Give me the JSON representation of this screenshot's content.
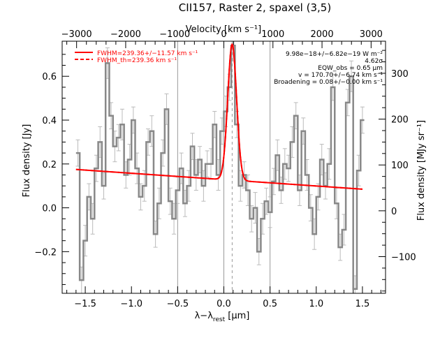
{
  "chart_data": {
    "type": "line",
    "title": "CII157, Raster 2, spaxel (3,5)",
    "xlabel": "λ−λ_rest [μm]",
    "xlabel_main": "λ−λ",
    "xlabel_sub": "rest",
    "xlabel_units": " [μm]",
    "ylabel": "Flux density [Jy]",
    "top_axis_label": "Velocity [km s⁻¹]",
    "right_axis_label": "Flux density [MJy sr⁻¹]",
    "xlim": [
      -1.75,
      1.75
    ],
    "ylim": [
      -0.39,
      0.76
    ],
    "x_ticks": [
      -1.5,
      -1.0,
      -0.5,
      0.0,
      0.5,
      1.0,
      1.5
    ],
    "x_tick_labels": [
      "−1.5",
      "−1.0",
      "−0.5",
      "0.0",
      "0.5",
      "1.0",
      "1.5"
    ],
    "y_ticks": [
      -0.2,
      0.0,
      0.2,
      0.4,
      0.6
    ],
    "y_tick_labels": [
      "−0.2",
      "0.0",
      "0.2",
      "0.4",
      "0.6"
    ],
    "top_ticks_kms": [
      -3000,
      -2000,
      -1000,
      0,
      1000,
      2000,
      3000
    ],
    "top_tick_labels": [
      "−3000",
      "−2000",
      "−1000",
      "0",
      "1000",
      "2000",
      "3000"
    ],
    "right_ticks_mjysr": [
      -100,
      0,
      100,
      200,
      300
    ],
    "right_tick_labels": [
      "−100",
      "0",
      "100",
      "200",
      "300"
    ],
    "grid": false,
    "vertical_lines_um": [
      -0.5,
      0.0,
      0.5
    ],
    "rest_line_um": 0.09,
    "legend": {
      "placement": "top-left",
      "entries": [
        {
          "label": "FWHM=239.36+/−11.57 km s⁻¹",
          "style": "solid",
          "color": "#ff0000"
        },
        {
          "label": "FWHM_th=239.36 km s⁻¹",
          "style": "dashed",
          "color": "#ff0000"
        }
      ]
    },
    "annotations": [
      "9.98e−18+/−6.82e−19 W m⁻²",
      "4.62σ",
      "EQW_obs = 0.65 μm",
      "v = 170.70+/−6.74 km s⁻¹",
      "Broadening = 0.08+/−0.00 km s⁻¹"
    ],
    "series": [
      {
        "name": "spectrum",
        "color": "#888888",
        "style": "step",
        "x": [
          -1.6,
          -1.56,
          -1.52,
          -1.48,
          -1.44,
          -1.4,
          -1.36,
          -1.32,
          -1.28,
          -1.24,
          -1.2,
          -1.16,
          -1.12,
          -1.08,
          -1.04,
          -1.0,
          -0.96,
          -0.92,
          -0.88,
          -0.84,
          -0.8,
          -0.76,
          -0.72,
          -0.68,
          -0.64,
          -0.6,
          -0.56,
          -0.52,
          -0.48,
          -0.44,
          -0.4,
          -0.36,
          -0.32,
          -0.28,
          -0.24,
          -0.2,
          -0.16,
          -0.12,
          -0.08,
          -0.04,
          0.0,
          0.04,
          0.08,
          0.12,
          0.16,
          0.2,
          0.24,
          0.28,
          0.32,
          0.36,
          0.4,
          0.44,
          0.48,
          0.52,
          0.56,
          0.6,
          0.64,
          0.68,
          0.72,
          0.76,
          0.8,
          0.84,
          0.88,
          0.92,
          0.96,
          1.0,
          1.04,
          1.08,
          1.12,
          1.16,
          1.2,
          1.24,
          1.28,
          1.32,
          1.36,
          1.4,
          1.44,
          1.48
        ],
        "y": [
          0.25,
          -0.33,
          -0.15,
          0.05,
          -0.05,
          0.18,
          0.3,
          0.1,
          0.66,
          0.42,
          0.28,
          0.32,
          0.38,
          0.15,
          0.22,
          0.4,
          0.18,
          0.05,
          0.1,
          0.3,
          0.35,
          -0.12,
          0.02,
          0.25,
          0.45,
          0.03,
          -0.05,
          0.08,
          0.18,
          0.02,
          0.1,
          0.28,
          0.15,
          0.22,
          0.1,
          0.2,
          0.2,
          0.38,
          0.15,
          0.35,
          0.44,
          0.55,
          0.74,
          0.38,
          0.1,
          0.15,
          0.08,
          -0.05,
          0.0,
          -0.2,
          -0.05,
          0.03,
          -0.02,
          0.12,
          0.24,
          0.08,
          0.2,
          0.18,
          0.3,
          0.42,
          0.08,
          0.35,
          0.15,
          0.0,
          -0.12,
          0.05,
          0.22,
          0.1,
          0.2,
          0.55,
          0.02,
          -0.18,
          -0.1,
          0.48,
          0.6,
          -0.37,
          0.17,
          0.4
        ],
        "error": [
          0.06,
          0.06,
          0.07,
          0.06,
          0.07,
          0.06,
          0.07,
          0.06,
          0.07,
          0.06,
          0.07,
          0.06,
          0.07,
          0.06,
          0.07,
          0.06,
          0.07,
          0.06,
          0.07,
          0.06,
          0.07,
          0.06,
          0.07,
          0.06,
          0.07,
          0.06,
          0.07,
          0.06,
          0.07,
          0.06,
          0.07,
          0.06,
          0.07,
          0.06,
          0.07,
          0.06,
          0.07,
          0.06,
          0.07,
          0.06,
          0.07,
          0.06,
          0.07,
          0.06,
          0.07,
          0.06,
          0.07,
          0.06,
          0.07,
          0.06,
          0.07,
          0.06,
          0.07,
          0.06,
          0.07,
          0.06,
          0.07,
          0.06,
          0.07,
          0.06,
          0.07,
          0.06,
          0.07,
          0.06,
          0.07,
          0.06,
          0.07,
          0.06,
          0.07,
          0.06,
          0.07,
          0.06,
          0.07,
          0.06,
          0.07,
          0.06,
          0.07,
          0.06
        ]
      },
      {
        "name": "FWHM=239.36+/−11.57 km s⁻¹",
        "color": "#ff0000",
        "style": "solid",
        "model": {
          "continuum_start": [
            -1.6,
            0.175
          ],
          "continuum_end": [
            1.5,
            0.085
          ],
          "center": 0.09,
          "amplitude": 0.62,
          "sigma": 0.048
        }
      },
      {
        "name": "FWHM_th=239.36 km s⁻¹",
        "color": "#ff0000",
        "style": "dashed",
        "model": {
          "continuum_start": [
            -1.6,
            0.175
          ],
          "continuum_end": [
            1.5,
            0.085
          ],
          "center": 0.09,
          "amplitude": 0.62,
          "sigma": 0.048
        }
      }
    ]
  }
}
